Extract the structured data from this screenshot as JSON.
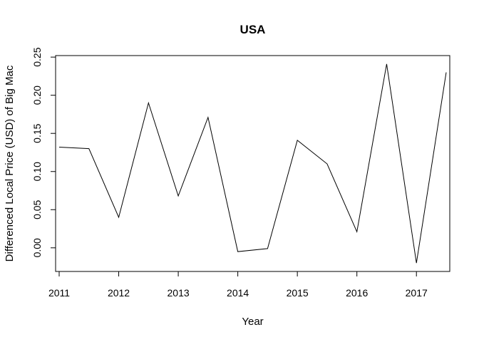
{
  "chart_data": {
    "type": "line",
    "title": "USA",
    "xlabel": "Year",
    "ylabel": "Differenced Local Price (USD) of Big Mac",
    "x": [
      2011.0,
      2011.5,
      2012.0,
      2012.5,
      2013.0,
      2013.5,
      2014.0,
      2014.5,
      2015.0,
      2015.5,
      2016.0,
      2016.5,
      2017.0,
      2017.5
    ],
    "series": [
      {
        "values": [
          0.132,
          0.13,
          0.04,
          0.19,
          0.068,
          0.171,
          -0.005,
          -0.001,
          0.141,
          0.11,
          0.021,
          0.241,
          -0.02,
          0.23
        ]
      }
    ],
    "xticks": [
      2011,
      2012,
      2013,
      2014,
      2015,
      2016,
      2017
    ],
    "xtick_labels": [
      "2011",
      "2012",
      "2013",
      "2014",
      "2015",
      "2016",
      "2017"
    ],
    "yticks": [
      0.0,
      0.05,
      0.1,
      0.15,
      0.2,
      0.25
    ],
    "ytick_labels": [
      "0.00",
      "0.05",
      "0.10",
      "0.15",
      "0.20",
      "0.25"
    ],
    "xlim": [
      2010.94,
      2017.56
    ],
    "ylim": [
      -0.031,
      0.252
    ],
    "grid": false,
    "line_color": "#000000"
  }
}
